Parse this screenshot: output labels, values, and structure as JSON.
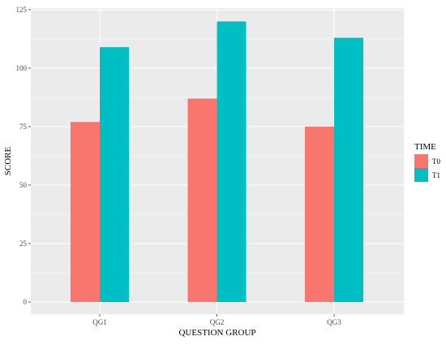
{
  "chart_data": {
    "type": "bar",
    "xlabel": "QUESTION GROUP",
    "ylabel": "SCORE",
    "categories": [
      "QG1",
      "QG2",
      "QG3"
    ],
    "series": [
      {
        "name": "T0",
        "values": [
          77,
          87,
          75
        ],
        "color": "#f8766d"
      },
      {
        "name": "T1",
        "values": [
          109,
          120,
          113
        ],
        "color": "#00bfc4"
      }
    ],
    "ylim": [
      0,
      125
    ],
    "yticks": [
      0,
      25,
      50,
      75,
      100,
      125
    ],
    "grid": true,
    "panel_background": "#ebebeb",
    "grid_color": "#ffffff",
    "legend": {
      "title": "TIME",
      "position": "right",
      "entries": [
        "T0",
        "T1"
      ]
    }
  }
}
